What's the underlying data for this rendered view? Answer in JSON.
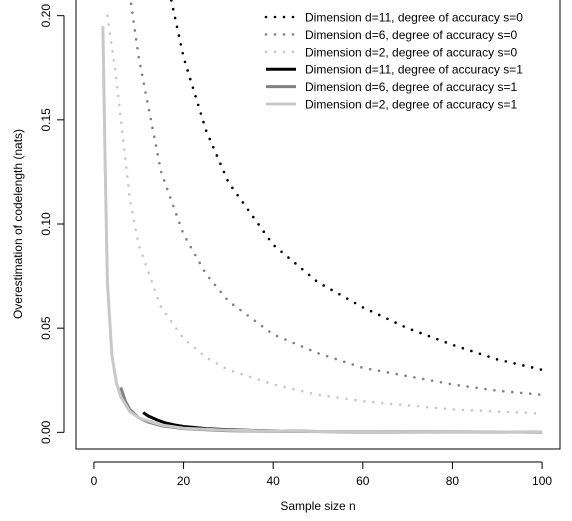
{
  "chart_data": {
    "type": "line",
    "title": "",
    "xlabel": "Sample size n",
    "ylabel": "Overestimation of codelength (nats)",
    "xlim": [
      -4,
      104
    ],
    "ylim": [
      -0.008,
      0.208
    ],
    "x_ticks": [
      0,
      20,
      40,
      60,
      80,
      100
    ],
    "y_ticks": [
      0.0,
      0.05,
      0.1,
      0.15,
      0.2
    ],
    "x_tick_labels": [
      "0",
      "20",
      "40",
      "60",
      "80",
      "100"
    ],
    "y_tick_labels": [
      "0.00",
      "0.05",
      "0.10",
      "0.15",
      "0.20"
    ],
    "grid": false,
    "legend_position": "top-right",
    "series": [
      {
        "name": "Dimension d=11, degree of accuracy s=0",
        "color": "#000000",
        "style": "dotted",
        "x": [
          16,
          20,
          25,
          30,
          40,
          50,
          60,
          70,
          80,
          90,
          100
        ],
        "y": [
          0.22,
          0.18,
          0.145,
          0.12,
          0.09,
          0.072,
          0.06,
          0.05,
          0.042,
          0.035,
          0.03
        ]
      },
      {
        "name": "Dimension d=6, degree of accuracy s=0",
        "color": "#808080",
        "style": "dotted",
        "x": [
          8,
          10,
          15,
          20,
          25,
          30,
          40,
          50,
          60,
          70,
          80,
          90,
          100
        ],
        "y": [
          0.21,
          0.18,
          0.125,
          0.095,
          0.076,
          0.063,
          0.047,
          0.038,
          0.031,
          0.027,
          0.023,
          0.02,
          0.018
        ]
      },
      {
        "name": "Dimension d=2, degree of accuracy s=0",
        "color": "#c8c8c8",
        "style": "dotted",
        "x": [
          3,
          5,
          8,
          10,
          15,
          20,
          25,
          30,
          40,
          50,
          60,
          70,
          80,
          90,
          100
        ],
        "y": [
          0.2,
          0.17,
          0.112,
          0.09,
          0.06,
          0.045,
          0.036,
          0.03,
          0.023,
          0.018,
          0.015,
          0.013,
          0.011,
          0.01,
          0.009
        ]
      },
      {
        "name": "Dimension d=11, degree of accuracy s=1",
        "color": "#000000",
        "style": "solid",
        "x": [
          11,
          12,
          14,
          16,
          18,
          20,
          25,
          30,
          40,
          50,
          60,
          80,
          100
        ],
        "y": [
          0.0095,
          0.008,
          0.006,
          0.0045,
          0.0035,
          0.0028,
          0.0018,
          0.0012,
          0.0007,
          0.0004,
          0.0003,
          0.0002,
          0.0001
        ]
      },
      {
        "name": "Dimension d=6, degree of accuracy s=1",
        "color": "#808080",
        "style": "solid",
        "x": [
          6,
          7,
          8,
          10,
          12,
          15,
          20,
          25,
          30,
          40,
          60,
          100
        ],
        "y": [
          0.0215,
          0.015,
          0.011,
          0.007,
          0.005,
          0.0032,
          0.0018,
          0.0012,
          0.0008,
          0.0005,
          0.0002,
          0.0001
        ]
      },
      {
        "name": "Dimension d=2, degree of accuracy s=1",
        "color": "#c8c8c8",
        "style": "solid",
        "x": [
          2,
          2.5,
          3,
          4,
          5,
          6,
          8,
          10,
          15,
          20,
          30,
          50,
          100
        ],
        "y": [
          0.195,
          0.13,
          0.072,
          0.037,
          0.024,
          0.017,
          0.01,
          0.007,
          0.0035,
          0.002,
          0.001,
          0.0004,
          0.0001
        ]
      }
    ]
  }
}
